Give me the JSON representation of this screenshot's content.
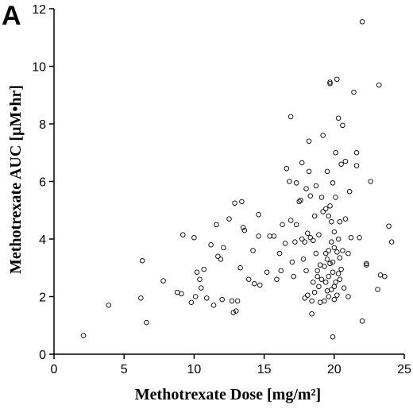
{
  "chart_data": {
    "type": "scatter",
    "panel_label": "A",
    "xlabel": "Methotrexate Dose [mg/m²]",
    "ylabel": "Methotrexate AUC [µM•hr]",
    "xlim": [
      0,
      25
    ],
    "ylim": [
      0,
      12
    ],
    "x_ticks": [
      0,
      5,
      10,
      15,
      20,
      25
    ],
    "y_ticks": [
      0,
      2,
      4,
      6,
      8,
      10,
      12
    ],
    "x_tick_labels": [
      "0",
      "5",
      "10",
      "15",
      "20",
      "25"
    ],
    "y_tick_labels": [
      "0",
      "2",
      "4",
      "6",
      "8",
      "10",
      "12"
    ],
    "grid": false,
    "marker": "open-circle",
    "points": [
      [
        2.1,
        0.65
      ],
      [
        3.9,
        1.7
      ],
      [
        6.2,
        1.95
      ],
      [
        6.3,
        3.25
      ],
      [
        6.6,
        1.1
      ],
      [
        7.8,
        2.55
      ],
      [
        8.8,
        2.15
      ],
      [
        9.1,
        2.1
      ],
      [
        9.2,
        4.15
      ],
      [
        9.8,
        1.8
      ],
      [
        10.0,
        4.05
      ],
      [
        10.1,
        2.0
      ],
      [
        10.2,
        2.85
      ],
      [
        10.4,
        2.6
      ],
      [
        10.5,
        2.3
      ],
      [
        10.7,
        2.95
      ],
      [
        10.9,
        1.95
      ],
      [
        11.2,
        3.8
      ],
      [
        11.4,
        1.7
      ],
      [
        11.6,
        4.5
      ],
      [
        11.7,
        3.4
      ],
      [
        11.9,
        3.3
      ],
      [
        12.0,
        1.9
      ],
      [
        12.1,
        3.7
      ],
      [
        12.5,
        4.7
      ],
      [
        12.7,
        1.85
      ],
      [
        12.8,
        1.45
      ],
      [
        12.9,
        5.25
      ],
      [
        13.0,
        1.5
      ],
      [
        13.1,
        1.85
      ],
      [
        13.3,
        3.0
      ],
      [
        13.4,
        5.3
      ],
      [
        13.5,
        4.4
      ],
      [
        13.6,
        4.3
      ],
      [
        13.9,
        2.6
      ],
      [
        14.2,
        3.6
      ],
      [
        14.3,
        2.45
      ],
      [
        14.6,
        4.1
      ],
      [
        14.6,
        4.85
      ],
      [
        14.7,
        2.4
      ],
      [
        15.2,
        2.85
      ],
      [
        15.4,
        4.1
      ],
      [
        15.7,
        4.1
      ],
      [
        15.9,
        2.6
      ],
      [
        16.1,
        3.5
      ],
      [
        16.2,
        2.9
      ],
      [
        16.3,
        4.5
      ],
      [
        16.5,
        3.85
      ],
      [
        16.6,
        6.45
      ],
      [
        16.8,
        6.0
      ],
      [
        16.9,
        4.65
      ],
      [
        16.9,
        8.25
      ],
      [
        17.0,
        3.2
      ],
      [
        17.1,
        2.7
      ],
      [
        17.2,
        3.9
      ],
      [
        17.3,
        4.5
      ],
      [
        17.3,
        5.95
      ],
      [
        17.5,
        5.3
      ],
      [
        17.6,
        5.35
      ],
      [
        17.7,
        4.0
      ],
      [
        17.7,
        6.65
      ],
      [
        17.8,
        3.3
      ],
      [
        17.9,
        3.9
      ],
      [
        17.9,
        1.95
      ],
      [
        18.0,
        2.9
      ],
      [
        18.0,
        5.75
      ],
      [
        18.1,
        2.05
      ],
      [
        18.1,
        4.2
      ],
      [
        18.2,
        6.35
      ],
      [
        18.2,
        7.4
      ],
      [
        18.3,
        4.05
      ],
      [
        18.3,
        5.5
      ],
      [
        18.4,
        1.4
      ],
      [
        18.4,
        1.85
      ],
      [
        18.5,
        2.5
      ],
      [
        18.5,
        3.95
      ],
      [
        18.6,
        2.15
      ],
      [
        18.6,
        4.8
      ],
      [
        18.7,
        3.5
      ],
      [
        18.7,
        5.85
      ],
      [
        18.8,
        2.7
      ],
      [
        18.8,
        2.9
      ],
      [
        18.9,
        2.35
      ],
      [
        18.9,
        4.15
      ],
      [
        19.0,
        1.8
      ],
      [
        19.0,
        3.1
      ],
      [
        19.1,
        2.6
      ],
      [
        19.1,
        5.45
      ],
      [
        19.2,
        4.95
      ],
      [
        19.2,
        7.6
      ],
      [
        19.3,
        3.05
      ],
      [
        19.3,
        1.85
      ],
      [
        19.4,
        2.5
      ],
      [
        19.4,
        3.5
      ],
      [
        19.4,
        5.05
      ],
      [
        19.5,
        2.2
      ],
      [
        19.5,
        3.3
      ],
      [
        19.5,
        6.35
      ],
      [
        19.6,
        2.0
      ],
      [
        19.6,
        2.7
      ],
      [
        19.6,
        3.6
      ],
      [
        19.6,
        4.8
      ],
      [
        19.7,
        9.45
      ],
      [
        19.7,
        9.4
      ],
      [
        19.7,
        3.15
      ],
      [
        19.7,
        5.15
      ],
      [
        19.8,
        2.25
      ],
      [
        19.8,
        3.9
      ],
      [
        19.8,
        4.6
      ],
      [
        19.9,
        0.6
      ],
      [
        19.9,
        2.85
      ],
      [
        19.9,
        3.2
      ],
      [
        19.9,
        5.95
      ],
      [
        20.0,
        1.9
      ],
      [
        20.0,
        2.35
      ],
      [
        20.0,
        3.7
      ],
      [
        20.0,
        4.25
      ],
      [
        20.1,
        2.5
      ],
      [
        20.1,
        5.45
      ],
      [
        20.1,
        7.0
      ],
      [
        20.2,
        2.05
      ],
      [
        20.2,
        3.55
      ],
      [
        20.2,
        9.55
      ],
      [
        20.3,
        2.8
      ],
      [
        20.3,
        4.0
      ],
      [
        20.3,
        8.2
      ],
      [
        20.4,
        2.6
      ],
      [
        20.4,
        3.35
      ],
      [
        20.4,
        4.6
      ],
      [
        20.5,
        2.95
      ],
      [
        20.5,
        6.6
      ],
      [
        20.6,
        3.6
      ],
      [
        20.6,
        7.95
      ],
      [
        20.7,
        2.3
      ],
      [
        20.8,
        4.7
      ],
      [
        20.8,
        6.7
      ],
      [
        21.0,
        2.0
      ],
      [
        21.0,
        3.5
      ],
      [
        21.1,
        5.65
      ],
      [
        21.2,
        4.05
      ],
      [
        21.4,
        9.1
      ],
      [
        21.6,
        7.0
      ],
      [
        21.6,
        6.55
      ],
      [
        21.8,
        4.05
      ],
      [
        22.0,
        1.15
      ],
      [
        22.0,
        11.55
      ],
      [
        22.3,
        3.15
      ],
      [
        22.3,
        3.1
      ],
      [
        22.6,
        6.0
      ],
      [
        23.1,
        2.25
      ],
      [
        23.2,
        9.35
      ],
      [
        23.3,
        2.75
      ],
      [
        23.6,
        2.7
      ],
      [
        23.9,
        4.45
      ],
      [
        24.1,
        3.9
      ]
    ]
  }
}
